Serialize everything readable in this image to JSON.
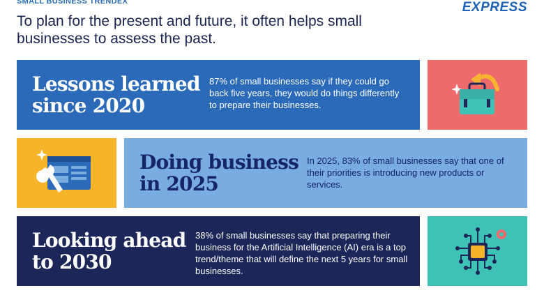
{
  "header": {
    "kicker": "SMALL BUSINESS TRENDEX",
    "brand": "EXPRESS",
    "headline": "To plan for the present and future, it often helps small businesses to assess the past."
  },
  "panels": [
    {
      "title_line1": "Lessons learned",
      "title_line2": "since 2020",
      "text": "87% of small businesses say if they could go back five years, they would do things differently to prepare their businesses.",
      "icon": "briefcase-arrow-icon"
    },
    {
      "title_line1": "Doing business",
      "title_line2": "in 2025",
      "text": "In 2025, 83% of small businesses say that one of their priorities is introducing new products or services.",
      "icon": "window-wrench-icon"
    },
    {
      "title_line1": "Looking ahead",
      "title_line2": "to 2030",
      "text": "38% of small businesses say that preparing their business for the Artificial Intelligence (AI) era is a top trend/theme that will define the next 5 years for small businesses.",
      "icon": "ai-chip-icon"
    }
  ],
  "colors": {
    "panel1": "#2a6ab9",
    "icon1": "#ef6b6b",
    "icon2": "#f5b429",
    "panel2": "#79acdf",
    "panel3": "#1d2659",
    "icon3": "#3ec2b5"
  }
}
